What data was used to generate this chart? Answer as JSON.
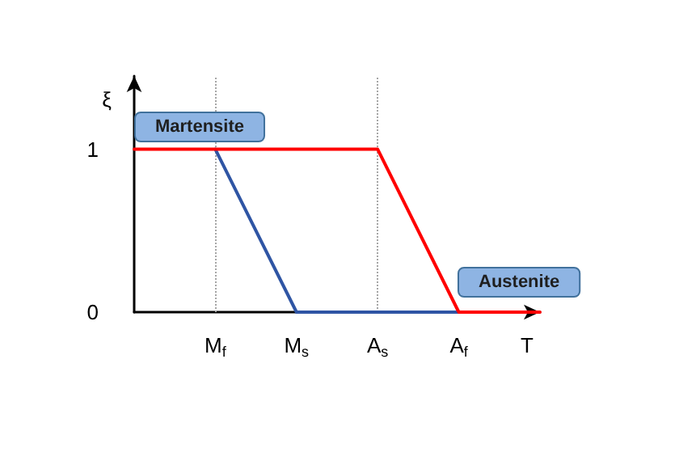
{
  "chart_data": {
    "type": "line",
    "xlabel": "T",
    "ylabel": "ξ",
    "categories": [
      null,
      "M$_{f}$",
      "M$_{s}$",
      "A$_{s}$",
      "A$_{f}$",
      null
    ],
    "series": [
      {
        "color": "#ff0000",
        "values": [
          1,
          1,
          1,
          1,
          0,
          0
        ]
      },
      {
        "color": "#2f55a4",
        "values": [
          null,
          1,
          0,
          0,
          0,
          null
        ]
      }
    ],
    "ylim": [
      0,
      1.45
    ],
    "yticks": [
      0,
      1
    ],
    "grid": false,
    "marker": "none",
    "line_style": "solid",
    "ref_lines": [
      {
        "axis": "x",
        "value": "M$_{f}$",
        "color": "#a6a6a6",
        "line_style": "dotted"
      },
      {
        "axis": "x",
        "value": "A$_{s}$",
        "color": "#a6a6a6",
        "line_style": "dotted"
      }
    ],
    "annotations": [
      "Martensite",
      "Austenite"
    ]
  }
}
